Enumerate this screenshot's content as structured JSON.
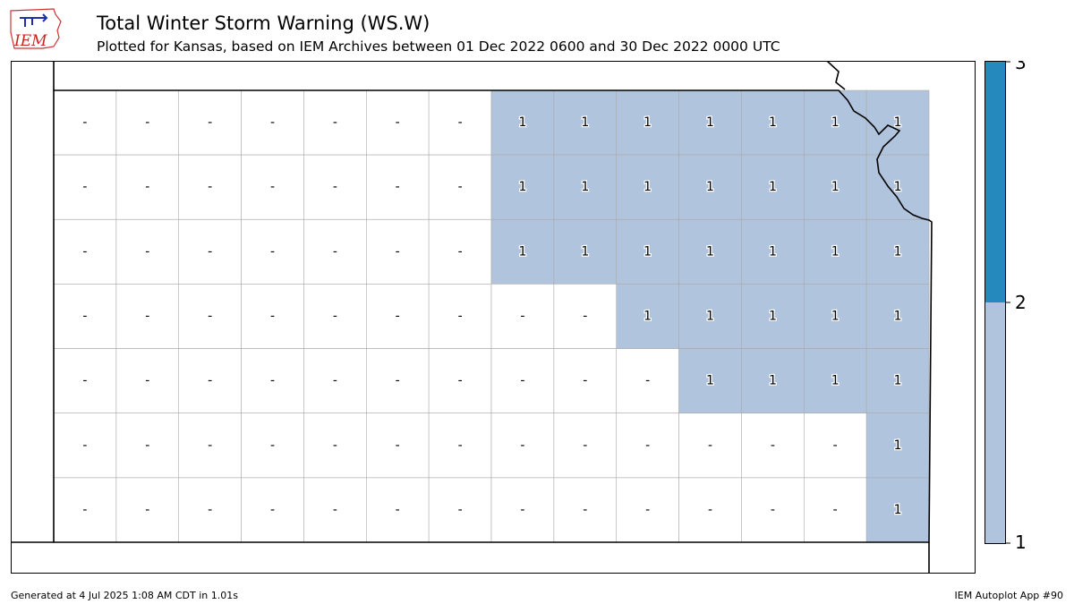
{
  "logo": {
    "text": "IEM",
    "icon": "iem-iowa-logo-icon"
  },
  "header": {
    "title": "Total Winter Storm Warning (WS.W)",
    "subtitle": "Plotted for Kansas, based on IEM Archives  between 01 Dec 2022 0600 and 30 Dec 2022 0000 UTC"
  },
  "colors": {
    "one": "#b0c4de",
    "two": "#2589bd",
    "none": "#ffffff",
    "county_border": "#aaaaaa",
    "state_border": "#000000"
  },
  "legend": {
    "ticks": [
      "1",
      "2",
      "3"
    ],
    "colors": [
      "#b0c4de",
      "#2589bd"
    ]
  },
  "map": {
    "warned_value": "1",
    "county_columns": [
      [
        "-",
        "-",
        "-",
        "-",
        "-",
        "-",
        "-"
      ],
      [
        "-",
        "-",
        "-",
        "-",
        "-",
        "-",
        "-"
      ],
      [
        "-",
        "-",
        "-",
        "-",
        "-",
        "-",
        "-"
      ],
      [
        "-",
        "-",
        "-",
        "-",
        "-",
        "-",
        "-"
      ],
      [
        "-",
        "-",
        "-",
        "-",
        "-",
        "-",
        "-"
      ],
      [
        "-",
        "-",
        "-",
        "-",
        "-",
        "-",
        "-"
      ],
      [
        "-",
        "-",
        "-",
        "-",
        "-",
        "-",
        "-"
      ],
      [
        "1",
        "1",
        "1",
        "-",
        "-",
        "-",
        "-"
      ],
      [
        "1",
        "1",
        "1",
        "-",
        "-",
        "-",
        "-"
      ],
      [
        "1",
        "1",
        "1",
        "1",
        "-",
        "-",
        "-"
      ],
      [
        "1",
        "1",
        "1",
        "1",
        "1",
        "-",
        "-"
      ],
      [
        "1",
        "1",
        "1",
        "1",
        "1",
        "-",
        "-"
      ],
      [
        "1",
        "1",
        "1",
        "1",
        "1",
        "-",
        "-"
      ],
      [
        "1",
        "1",
        "1",
        "1",
        "1",
        "1",
        "1"
      ]
    ]
  },
  "footer": {
    "generated": "Generated at 4 Jul 2025 1:08 AM CDT in 1.01s",
    "app": "IEM Autoplot App #90"
  }
}
